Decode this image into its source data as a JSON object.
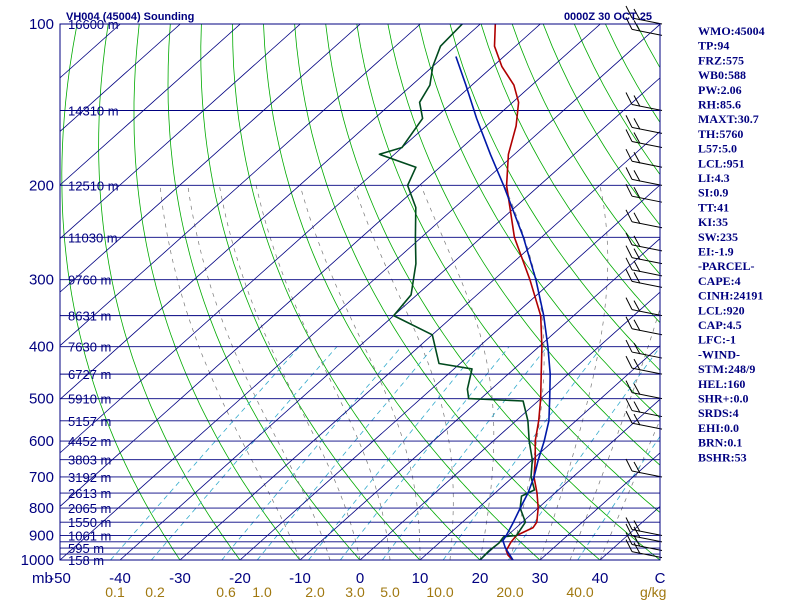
{
  "header": {
    "title": "VH004 (45004) Sounding",
    "datetime": "0000Z 30 OCT 25"
  },
  "chart_data": {
    "type": "line",
    "title": "VH004 (45004) Sounding",
    "chart_kind": "skew-T log-P",
    "y_unit": "mb",
    "y_scale": "log",
    "ylim": [
      1000,
      100
    ],
    "xlim": [
      -50,
      50
    ],
    "pressure_ticks": [
      100,
      200,
      300,
      400,
      500,
      600,
      700,
      800,
      900,
      1000
    ],
    "temperature_ticks": [
      -50,
      -40,
      -30,
      -20,
      -10,
      0,
      10,
      20,
      30,
      40,
      50
    ],
    "temperature_tick_labels": [
      "-50",
      "-40",
      "-30",
      "-20",
      "-10",
      "0",
      "10",
      "20",
      "30",
      "40",
      "C"
    ],
    "y_unit_label": "mb",
    "mixing_ratio_labels": [
      "0.1",
      "0.2",
      "0.6",
      "1.0",
      "2.0",
      "3.0",
      "5.0",
      "10.0",
      "20.0",
      "40.0"
    ],
    "mixing_ratio_unit": "g/kg",
    "height_labels": [
      {
        "p": 100,
        "label": "16600 m"
      },
      {
        "p": 145,
        "label": "14310 m"
      },
      {
        "p": 200,
        "label": "12510 m"
      },
      {
        "p": 250,
        "label": "11030 m"
      },
      {
        "p": 300,
        "label": "9760 m"
      },
      {
        "p": 350,
        "label": "8631 m"
      },
      {
        "p": 400,
        "label": "7630 m"
      },
      {
        "p": 450,
        "label": "6727 m"
      },
      {
        "p": 500,
        "label": "5910 m"
      },
      {
        "p": 550,
        "label": "5157 m"
      },
      {
        "p": 600,
        "label": "4452 m"
      },
      {
        "p": 650,
        "label": "3803 m"
      },
      {
        "p": 700,
        "label": "3192 m"
      },
      {
        "p": 750,
        "label": "2613 m"
      },
      {
        "p": 800,
        "label": "2065 m"
      },
      {
        "p": 850,
        "label": "1550 m"
      },
      {
        "p": 900,
        "label": "1061 m"
      },
      {
        "p": 950,
        "label": "595 m"
      },
      {
        "p": 1000,
        "label": "158 m"
      }
    ],
    "series": [
      {
        "name": "",
        "kind": "temperature",
        "color": "#b00000",
        "points": [
          {
            "p": 1000,
            "t": 25.5
          },
          {
            "p": 980,
            "t": 23.8
          },
          {
            "p": 960,
            "t": 22.6
          },
          {
            "p": 925,
            "t": 21.8
          },
          {
            "p": 900,
            "t": 21.5
          },
          {
            "p": 870,
            "t": 22.8
          },
          {
            "p": 850,
            "t": 22.4
          },
          {
            "p": 800,
            "t": 20.0
          },
          {
            "p": 750,
            "t": 17.0
          },
          {
            "p": 700,
            "t": 13.5
          },
          {
            "p": 650,
            "t": 10.5
          },
          {
            "p": 600,
            "t": 7.0
          },
          {
            "p": 550,
            "t": 3.8
          },
          {
            "p": 500,
            "t": 0.0
          },
          {
            "p": 450,
            "t": -4.5
          },
          {
            "p": 400,
            "t": -9.5
          },
          {
            "p": 350,
            "t": -15.5
          },
          {
            "p": 300,
            "t": -24.0
          },
          {
            "p": 250,
            "t": -34.5
          },
          {
            "p": 200,
            "t": -45.5
          },
          {
            "p": 175,
            "t": -51.0
          },
          {
            "p": 155,
            "t": -55.0
          },
          {
            "p": 140,
            "t": -59.0
          },
          {
            "p": 130,
            "t": -63.0
          },
          {
            "p": 120,
            "t": -68.5
          },
          {
            "p": 110,
            "t": -73.5
          },
          {
            "p": 100,
            "t": -77.5
          }
        ]
      },
      {
        "name": "",
        "kind": "dewpoint",
        "color": "#004a1e",
        "points": [
          {
            "p": 1000,
            "t": 20.0
          },
          {
            "p": 960,
            "t": 19.8
          },
          {
            "p": 930,
            "t": 20.0
          },
          {
            "p": 905,
            "t": 19.6
          },
          {
            "p": 900,
            "t": 21.5
          },
          {
            "p": 850,
            "t": 20.5
          },
          {
            "p": 800,
            "t": 17.0
          },
          {
            "p": 760,
            "t": 15.0
          },
          {
            "p": 740,
            "t": 16.0
          },
          {
            "p": 700,
            "t": 13.0
          },
          {
            "p": 650,
            "t": 10.0
          },
          {
            "p": 600,
            "t": 6.0
          },
          {
            "p": 550,
            "t": 2.0
          },
          {
            "p": 505,
            "t": -2.5
          },
          {
            "p": 500,
            "t": -12.0
          },
          {
            "p": 480,
            "t": -14.0
          },
          {
            "p": 440,
            "t": -17.0
          },
          {
            "p": 430,
            "t": -23.5
          },
          {
            "p": 380,
            "t": -30.0
          },
          {
            "p": 350,
            "t": -40.0
          },
          {
            "p": 320,
            "t": -41.0
          },
          {
            "p": 280,
            "t": -46.0
          },
          {
            "p": 250,
            "t": -51.0
          },
          {
            "p": 220,
            "t": -56.5
          },
          {
            "p": 200,
            "t": -62.0
          },
          {
            "p": 185,
            "t": -64.0
          },
          {
            "p": 175,
            "t": -72.5
          },
          {
            "p": 170,
            "t": -70.0
          },
          {
            "p": 150,
            "t": -72.0
          },
          {
            "p": 140,
            "t": -75.5
          },
          {
            "p": 130,
            "t": -77.0
          },
          {
            "p": 120,
            "t": -80.0
          },
          {
            "p": 110,
            "t": -82.5
          },
          {
            "p": 100,
            "t": -83.0
          }
        ]
      },
      {
        "name": "",
        "kind": "parcel",
        "color": "#0018a8",
        "points": [
          {
            "p": 1000,
            "t": 25.5
          },
          {
            "p": 950,
            "t": 22.0
          },
          {
            "p": 920,
            "t": 20.2
          },
          {
            "p": 900,
            "t": 19.8
          },
          {
            "p": 850,
            "t": 18.5
          },
          {
            "p": 800,
            "t": 17.0
          },
          {
            "p": 750,
            "t": 15.5
          },
          {
            "p": 700,
            "t": 13.5
          },
          {
            "p": 650,
            "t": 11.0
          },
          {
            "p": 600,
            "t": 8.5
          },
          {
            "p": 550,
            "t": 5.5
          },
          {
            "p": 500,
            "t": 1.5
          },
          {
            "p": 450,
            "t": -3.0
          },
          {
            "p": 400,
            "t": -8.5
          },
          {
            "p": 350,
            "t": -15.0
          },
          {
            "p": 300,
            "t": -23.0
          },
          {
            "p": 250,
            "t": -33.0
          },
          {
            "p": 200,
            "t": -46.0
          },
          {
            "p": 175,
            "t": -54.0
          },
          {
            "p": 150,
            "t": -63.0
          },
          {
            "p": 130,
            "t": -71.0
          },
          {
            "p": 115,
            "t": -78.0
          }
        ]
      }
    ],
    "wind_barb_levels": [
      100,
      105,
      145,
      160,
      170,
      185,
      200,
      215,
      240,
      265,
      280,
      295,
      310,
      350,
      380,
      420,
      450,
      500,
      540,
      570,
      700,
      900,
      925,
      960,
      990
    ]
  },
  "indices": [
    "WMO:45004",
    "TP:94",
    "FRZ:575",
    "WB0:588",
    "PW:2.06",
    "RH:85.6",
    "MAXT:30.7",
    "TH:5760",
    "L57:5.0",
    "LCL:951",
    "LI:4.3",
    "SI:0.9",
    "TT:41",
    "KI:35",
    "SW:235",
    "EI:-1.9",
    "-PARCEL-",
    "CAPE:4",
    "CINH:24191",
    "LCL:920",
    "CAP:4.5",
    "LFC:-1",
    "-WIND-",
    "STM:248/9",
    "HEL:160",
    "SHR+:0.0",
    "SRDS:4",
    "EHI:0.0",
    "BRN:0.1",
    "BSHR:53"
  ],
  "colors": {
    "isobar": "#000080",
    "dry_adiabat": "#00aa00",
    "isotherm": "#000080",
    "mixing_ratio": "#33aacc",
    "moist_adiabat": "#777777",
    "mixing_label": "#a07810",
    "text": "#000080"
  }
}
